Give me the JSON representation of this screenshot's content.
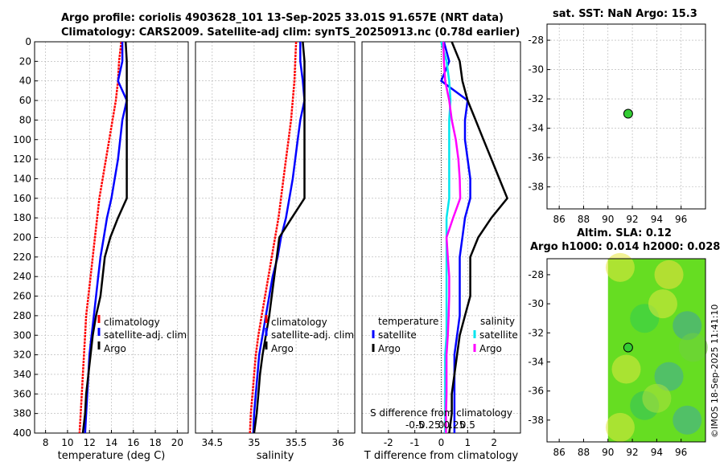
{
  "header": {
    "title_line1": "Argo profile: coriolis 4903628_101 13-Sep-2025 33.01S 91.657E (NRT data)",
    "title_line2": "Climatology: CARS2009. Satellite-adj clim: synTS_20250913.nc (0.78d earlier)"
  },
  "colors": {
    "climatology": "#ff0000",
    "satellite": "#0000ff",
    "argo": "#000000",
    "sat_salinity": "#00e5ee",
    "argo_salinity": "#ff00ff",
    "marker": "#33cc33",
    "grid": "#b0b0b0"
  },
  "footer": {
    "stamp": "©IMOS 18-Sep-2025 11:41:10"
  },
  "chart_data": [
    {
      "type": "line",
      "name": "temperature-profile",
      "xlabel": "temperature (deg C)",
      "ylabel": "",
      "xlim": [
        7,
        21
      ],
      "ylim": [
        400,
        0
      ],
      "xticks": [
        8,
        10,
        12,
        14,
        16,
        18,
        20
      ],
      "yticks": [
        0,
        20,
        40,
        60,
        80,
        100,
        120,
        140,
        160,
        180,
        200,
        220,
        240,
        260,
        280,
        300,
        320,
        340,
        360,
        380,
        400
      ],
      "grid": true,
      "depth": [
        0,
        20,
        40,
        60,
        80,
        100,
        120,
        140,
        160,
        180,
        200,
        220,
        240,
        260,
        280,
        300,
        320,
        340,
        360,
        380,
        400
      ],
      "series": [
        {
          "name": "climatology",
          "color": "#ff0000",
          "values": [
            14.9,
            14.7,
            14.6,
            14.4,
            14.1,
            13.8,
            13.5,
            13.2,
            12.9,
            12.7,
            12.5,
            12.3,
            12.1,
            11.9,
            11.7,
            11.6,
            11.5,
            11.4,
            11.3,
            11.2,
            11.1
          ]
        },
        {
          "name": "satellite-adj. clim",
          "color": "#0000ff",
          "values": [
            15.0,
            15.0,
            14.6,
            15.4,
            15.0,
            14.8,
            14.6,
            14.3,
            14.0,
            13.6,
            13.3,
            13.0,
            12.8,
            12.6,
            12.4,
            12.2,
            12.0,
            11.9,
            11.8,
            11.7,
            11.6
          ]
        },
        {
          "name": "Argo",
          "color": "#000000",
          "values": [
            15.3,
            15.4,
            15.4,
            15.4,
            15.4,
            15.4,
            15.4,
            15.4,
            15.4,
            14.6,
            13.9,
            13.4,
            13.2,
            13.0,
            12.6,
            12.3,
            12.1,
            11.9,
            11.7,
            11.6,
            11.4
          ]
        }
      ],
      "legend": [
        "climatology",
        "satellite-adj. clim",
        "Argo"
      ],
      "legend_position": "lower-right"
    },
    {
      "type": "line",
      "name": "salinity-profile",
      "xlabel": "salinity",
      "ylabel": "",
      "xlim": [
        34.3,
        36.2
      ],
      "ylim": [
        400,
        0
      ],
      "xticks": [
        34.5,
        35,
        35.5,
        36
      ],
      "grid": true,
      "depth": [
        0,
        20,
        40,
        60,
        80,
        100,
        120,
        140,
        160,
        180,
        200,
        220,
        240,
        260,
        280,
        300,
        320,
        340,
        360,
        380,
        400
      ],
      "series": [
        {
          "name": "climatology",
          "color": "#ff0000",
          "values": [
            35.5,
            35.49,
            35.48,
            35.46,
            35.44,
            35.41,
            35.38,
            35.35,
            35.32,
            35.29,
            35.25,
            35.21,
            35.17,
            35.13,
            35.09,
            35.05,
            35.02,
            35.0,
            34.98,
            34.96,
            34.95
          ]
        },
        {
          "name": "satellite-adj. clim",
          "color": "#0000ff",
          "values": [
            35.55,
            35.55,
            35.58,
            35.6,
            35.55,
            35.52,
            35.49,
            35.46,
            35.42,
            35.38,
            35.32,
            35.28,
            35.22,
            35.18,
            35.14,
            35.1,
            35.06,
            35.04,
            35.02,
            35.0,
            34.99
          ]
        },
        {
          "name": "Argo",
          "color": "#000000",
          "values": [
            35.58,
            35.6,
            35.6,
            35.6,
            35.6,
            35.6,
            35.6,
            35.6,
            35.6,
            35.45,
            35.3,
            35.27,
            35.24,
            35.21,
            35.18,
            35.14,
            35.1,
            35.07,
            35.05,
            35.03,
            35.0
          ]
        }
      ],
      "legend": [
        "climatology",
        "satellite-adj. clim",
        "Argo"
      ],
      "legend_position": "lower-right"
    },
    {
      "type": "line",
      "name": "difference-profile",
      "xlabel": "T difference from climatology",
      "xlabel_top": "S difference from climatology",
      "xlim": [
        -3,
        3
      ],
      "ylim": [
        400,
        0
      ],
      "xticks": [
        -2,
        -1,
        0,
        1,
        2
      ],
      "xticks_top_values": [
        -0.5,
        -0.25,
        0,
        0.25,
        0.5
      ],
      "xticks_top_labels": [
        "-0.5",
        "-0.25",
        "0",
        "0.25",
        "0.5"
      ],
      "grid": true,
      "depth": [
        0,
        20,
        40,
        60,
        80,
        100,
        120,
        140,
        160,
        180,
        200,
        220,
        240,
        260,
        280,
        300,
        320,
        340,
        360,
        380,
        400
      ],
      "series": [
        {
          "name": "temperature satellite",
          "color": "#0000ff",
          "values": [
            0.1,
            0.3,
            0.0,
            1.0,
            0.9,
            0.9,
            1.0,
            1.1,
            1.1,
            0.9,
            0.8,
            0.7,
            0.7,
            0.7,
            0.7,
            0.6,
            0.5,
            0.5,
            0.5,
            0.5,
            0.5
          ]
        },
        {
          "name": "temperature Argo",
          "color": "#000000",
          "values": [
            0.4,
            0.7,
            0.8,
            1.0,
            1.3,
            1.6,
            1.9,
            2.2,
            2.5,
            1.9,
            1.4,
            1.1,
            1.1,
            1.1,
            0.9,
            0.7,
            0.6,
            0.5,
            0.4,
            0.4,
            0.3
          ]
        },
        {
          "name": "salinity satellite",
          "color": "#00e5ee",
          "values": [
            0.0,
            0.2,
            0.3,
            0.35,
            0.3,
            0.3,
            0.3,
            0.3,
            0.3,
            0.2,
            0.2,
            0.2,
            0.2,
            0.2,
            0.2,
            0.2,
            0.15,
            0.15,
            0.15,
            0.15,
            0.15
          ]
        },
        {
          "name": "salinity Argo",
          "color": "#ff00ff",
          "values": [
            0.08,
            0.1,
            0.15,
            0.3,
            0.4,
            0.55,
            0.65,
            0.7,
            0.72,
            0.45,
            0.2,
            0.25,
            0.3,
            0.3,
            0.28,
            0.25,
            0.2,
            0.2,
            0.2,
            0.18,
            0.18
          ]
        }
      ],
      "legend_temperature": {
        "title": "temperature",
        "items": [
          "satellite",
          "Argo"
        ]
      },
      "legend_salinity": {
        "title": "salinity",
        "items": [
          "satellite",
          "Argo"
        ]
      }
    },
    {
      "type": "scatter",
      "name": "sst-location-map",
      "title": "sat. SST: NaN Argo: 15.3",
      "xlim": [
        85,
        98
      ],
      "ylim": [
        -39.5,
        -26.9
      ],
      "xticks": [
        86,
        88,
        90,
        92,
        94,
        96
      ],
      "yticks": [
        -28,
        -30,
        -32,
        -34,
        -36,
        -38
      ],
      "grid": true,
      "points": [
        {
          "x": 91.657,
          "y": -33.01
        }
      ]
    },
    {
      "type": "heatmap",
      "name": "sla-location-map",
      "title_line1": "Altim. SLA: 0.12",
      "title_line2": "Argo h1000: 0.014 h2000: 0.028",
      "xlim": [
        85,
        98
      ],
      "ylim": [
        -39.5,
        -26.9
      ],
      "xticks": [
        86,
        88,
        90,
        92,
        94,
        96
      ],
      "yticks": [
        -28,
        -30,
        -32,
        -34,
        -36,
        -38
      ],
      "data_extent_lon": [
        90,
        98
      ],
      "points": [
        {
          "x": 91.657,
          "y": -33.01
        }
      ]
    }
  ]
}
